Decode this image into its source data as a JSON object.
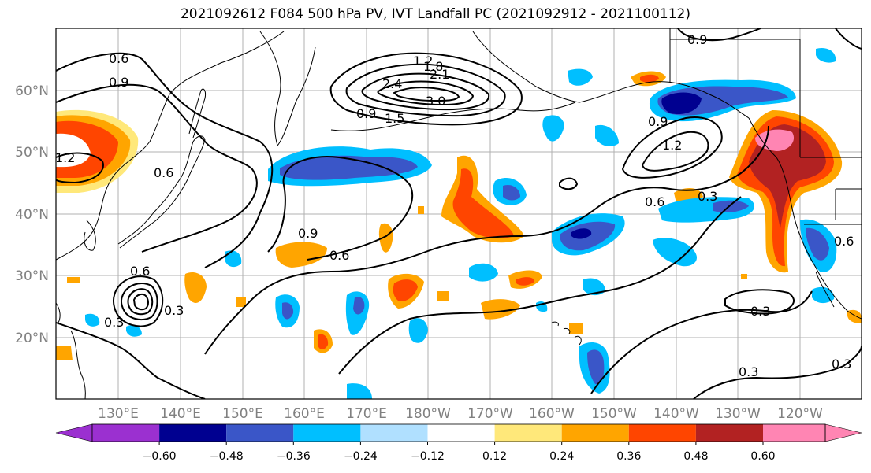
{
  "title": "2021092612 F084 500 hPa PV, IVT Landfall PC (2021092912 - 2021100112)",
  "colors": {
    "neg": [
      "#9b30d0",
      "#000090",
      "#3a56c8",
      "#00bfff",
      "#b0e0ff"
    ],
    "pos": [
      "#ffe87a",
      "#ffa500",
      "#ff4500",
      "#b22222",
      "#ff85b3"
    ],
    "land_line": "#000000",
    "grid": "#b0b0b0",
    "label_gray": "#808080"
  },
  "lat_labels": [
    "60°N",
    "50°N",
    "40°N",
    "30°N",
    "20°N"
  ],
  "lon_labels": [
    "130°E",
    "140°E",
    "150°E",
    "160°E",
    "170°E",
    "180°W",
    "170°W",
    "160°W",
    "150°W",
    "140°W",
    "130°W",
    "120°W"
  ],
  "colorbar": {
    "ticks": [
      "−0.60",
      "−0.48",
      "−0.36",
      "−0.24",
      "−0.12",
      "0.12",
      "0.24",
      "0.36",
      "0.48",
      "0.60"
    ]
  },
  "contour_labels": [
    "0.6",
    "0.9",
    "1.2",
    "0.6",
    "1.2",
    "2.4",
    "2.1",
    "1.8",
    "3.0",
    "0.9",
    "1.5",
    "0.9",
    "1.2",
    "0.6",
    "0.3",
    "0.9",
    "0.6",
    "0.6",
    "0.3",
    "0.3",
    "0.3",
    "0.3",
    "0.3",
    "0.9",
    "0.6"
  ]
}
